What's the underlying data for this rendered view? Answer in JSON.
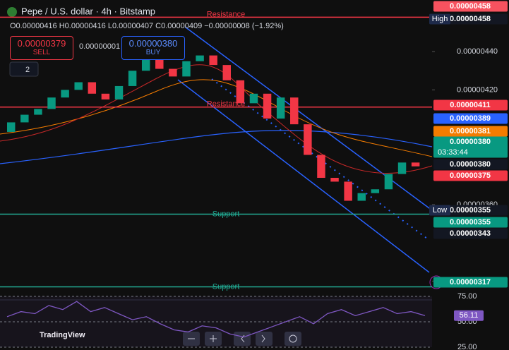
{
  "header": {
    "title": "Pepe / U.S. dollar · 4h · Bitstamp",
    "ohlc": "O0.00000416 H0.00000416 L0.00000407 C0.00000409 −0.00000008 (−1.92%)",
    "sell_price": "0.00000379",
    "sell": "SELL",
    "spread": "0.00000001",
    "buy_price": "0.00000380",
    "buy": "BUY",
    "indicators": "2"
  },
  "chart_data": {
    "type": "candlestick",
    "ylim": [
      3.12e-06,
      4.67e-06
    ],
    "yticks": [
      {
        "value": 4.4e-06,
        "label": "0.00000440"
      },
      {
        "value": 4.2e-06,
        "label": "0.00000420"
      },
      {
        "value": 3.6e-06,
        "label": "0.00000360"
      },
      {
        "value": 3.2e-06,
        "label": "0.00000320"
      }
    ],
    "open": [
      3.98e-06,
      4.03e-06,
      4.07e-06,
      4.1e-06,
      4.16e-06,
      4.2e-06,
      4.24e-06,
      4.18e-06,
      4.15e-06,
      4.22e-06,
      4.3e-06,
      4.36e-06,
      4.31e-06,
      4.27e-06,
      4.35e-06,
      4.38e-06,
      4.33e-06,
      4.25e-06,
      4.13e-06,
      4.18e-06,
      4.05e-06,
      4.16e-06,
      4.02e-06,
      3.86e-06,
      3.74e-06,
      3.72e-06,
      3.62e-06,
      3.66e-06,
      3.68e-06,
      3.76e-06,
      3.82e-06
    ],
    "close": [
      4.03e-06,
      4.07e-06,
      4.1e-06,
      4.16e-06,
      4.2e-06,
      4.24e-06,
      4.18e-06,
      4.15e-06,
      4.22e-06,
      4.3e-06,
      4.36e-06,
      4.31e-06,
      4.27e-06,
      4.35e-06,
      4.38e-06,
      4.33e-06,
      4.25e-06,
      4.13e-06,
      4.18e-06,
      4.05e-06,
      4.16e-06,
      4.02e-06,
      3.86e-06,
      3.74e-06,
      3.72e-06,
      3.62e-06,
      3.66e-06,
      3.68e-06,
      3.76e-06,
      3.82e-06,
      3.8e-06
    ],
    "levels": [
      {
        "name": "Resistance",
        "value": 4.58e-06,
        "color": "#f23645"
      },
      {
        "name": "Resistance",
        "value": 4.11e-06,
        "color": "#f23645"
      },
      {
        "name": "Support",
        "value": 3.55e-06,
        "color": "#22ab94"
      },
      {
        "name": "Support",
        "value": 3.17e-06,
        "color": "#22ab94"
      }
    ],
    "up_color": "#089981",
    "down_color": "#f23645",
    "price_tags": [
      {
        "label": "0.00000458",
        "color": "#f7525f"
      },
      {
        "name": "High",
        "label": "0.00000458",
        "color": "#131722"
      },
      {
        "label": "0.00000411",
        "color": "#f23645"
      },
      {
        "label": "0.00000389",
        "color": "#2962ff"
      },
      {
        "label": "0.00000381",
        "color": "#f57c00"
      },
      {
        "label": "0.00000380",
        "timer": "03:33:44",
        "color": "#089981"
      },
      {
        "label": "0.00000380",
        "color": "#131722"
      },
      {
        "label": "0.00000375",
        "color": "#f23645"
      },
      {
        "name": "Low",
        "label": "0.00000355",
        "color": "#131722"
      },
      {
        "label": "0.00000355",
        "color": "#089981"
      },
      {
        "label": "0.00000343",
        "color": "#131722"
      },
      {
        "label": "0.00000317",
        "color": "#089981"
      }
    ],
    "rsi": {
      "ylim": [
        25,
        75
      ],
      "yticks": [
        {
          "value": 75,
          "label": "75.00"
        },
        {
          "value": 50,
          "label": "50.00"
        },
        {
          "value": 25,
          "label": "25.00"
        }
      ],
      "values": [
        55,
        60,
        58,
        66,
        62,
        70,
        60,
        64,
        58,
        52,
        55,
        48,
        42,
        40,
        46,
        44,
        38,
        35,
        40,
        45,
        50,
        55,
        48,
        58,
        62,
        56,
        60,
        64,
        58,
        60,
        56.11
      ],
      "value_labels": [
        null,
        null,
        null,
        null,
        null,
        null,
        null,
        null,
        null,
        null,
        null,
        null,
        null,
        null,
        null,
        null,
        null,
        null,
        null,
        null,
        null,
        null,
        null,
        null,
        null,
        null,
        null,
        null,
        null,
        null,
        "56.11"
      ],
      "color": "#7e57c2"
    }
  },
  "footer": {
    "brand": "TradingView"
  }
}
